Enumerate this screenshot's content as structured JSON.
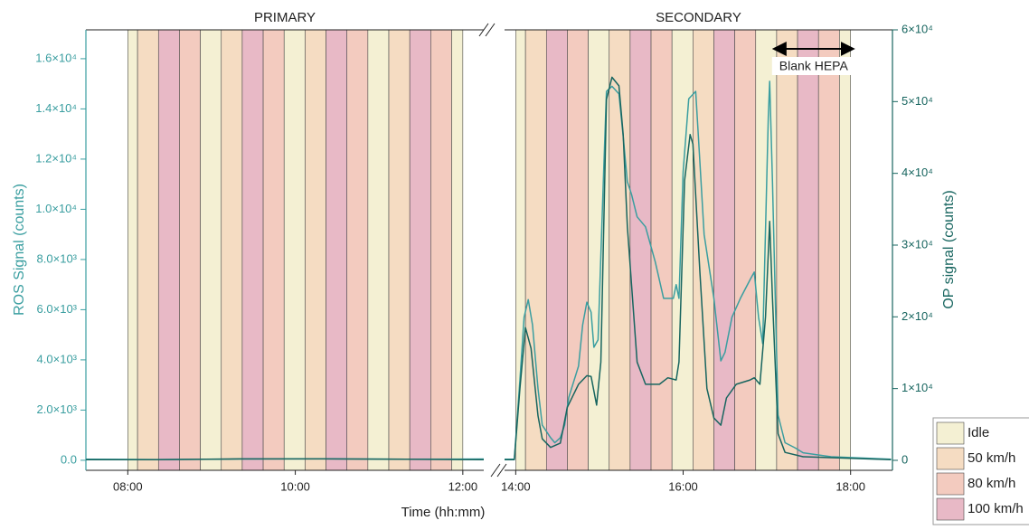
{
  "chart_data": {
    "type": "line",
    "x_label": "Time (hh:mm)",
    "y_label": "ROS Signal (counts)",
    "y2_label": "OP signal (counts)",
    "ylim": [
      -400,
      17150
    ],
    "yticks": [
      {
        "value": 0,
        "label": "0.0"
      },
      {
        "value": 2000,
        "label": "2.0×10³"
      },
      {
        "value": 4000,
        "label": "4.0×10³"
      },
      {
        "value": 6000,
        "label": "6.0×10³"
      },
      {
        "value": 8000,
        "label": "8.0×10³"
      },
      {
        "value": 10000,
        "label": "1.0×10⁴"
      },
      {
        "value": 12000,
        "label": "1.2×10⁴"
      },
      {
        "value": 14000,
        "label": "1.4×10⁴"
      },
      {
        "value": 16000,
        "label": "1.6×10⁴"
      }
    ],
    "y2lim": [
      -1390,
      60000
    ],
    "y2ticks": [
      0,
      {
        "value": 10000,
        "label": "1×10⁴"
      },
      {
        "value": 20000,
        "label": "2×10⁴"
      },
      {
        "value": 30000,
        "label": "3×10⁴"
      },
      {
        "value": 40000,
        "label": "4×10⁴"
      },
      {
        "value": 50000,
        "label": "5×10⁴"
      },
      {
        "value": 60000,
        "label": "6×10⁴"
      }
    ],
    "phases": [
      {
        "name": "Idle",
        "color": "#f4f0d3"
      },
      {
        "name": "50 km/h",
        "color": "#f5dcc2"
      },
      {
        "name": "80 km/h",
        "color": "#f3cbbf"
      },
      {
        "name": "100 km/h",
        "color": "#e8b9c6"
      }
    ],
    "panels": [
      {
        "title": "PRIMARY",
        "xlim": [
          450,
          735
        ],
        "xticks": [
          {
            "value": 480,
            "label": "08:00"
          },
          {
            "value": 600,
            "label": "10:00"
          },
          {
            "value": 720,
            "label": "12:00"
          }
        ],
        "bands": [
          {
            "start": 480,
            "end": 487,
            "phase": "Idle"
          },
          {
            "start": 487,
            "end": 502,
            "phase": "50 km/h"
          },
          {
            "start": 502,
            "end": 517,
            "phase": "100 km/h"
          },
          {
            "start": 517,
            "end": 532,
            "phase": "80 km/h"
          },
          {
            "start": 532,
            "end": 547,
            "phase": "Idle"
          },
          {
            "start": 547,
            "end": 562,
            "phase": "50 km/h"
          },
          {
            "start": 562,
            "end": 577,
            "phase": "100 km/h"
          },
          {
            "start": 577,
            "end": 592,
            "phase": "80 km/h"
          },
          {
            "start": 592,
            "end": 607,
            "phase": "Idle"
          },
          {
            "start": 607,
            "end": 622,
            "phase": "50 km/h"
          },
          {
            "start": 622,
            "end": 637,
            "phase": "100 km/h"
          },
          {
            "start": 637,
            "end": 652,
            "phase": "80 km/h"
          },
          {
            "start": 652,
            "end": 667,
            "phase": "Idle"
          },
          {
            "start": 667,
            "end": 682,
            "phase": "50 km/h"
          },
          {
            "start": 682,
            "end": 697,
            "phase": "100 km/h"
          },
          {
            "start": 697,
            "end": 712,
            "phase": "80 km/h"
          },
          {
            "start": 712,
            "end": 720,
            "phase": "Idle"
          }
        ]
      },
      {
        "title": "SECONDARY",
        "xlim": [
          832,
          1110
        ],
        "xticks": [
          {
            "value": 840,
            "label": "14:00"
          },
          {
            "value": 960,
            "label": "16:00"
          },
          {
            "value": 1080,
            "label": "18:00"
          }
        ],
        "bands": [
          {
            "start": 840,
            "end": 847,
            "phase": "Idle"
          },
          {
            "start": 847,
            "end": 862,
            "phase": "50 km/h"
          },
          {
            "start": 862,
            "end": 877,
            "phase": "100 km/h"
          },
          {
            "start": 877,
            "end": 892,
            "phase": "80 km/h"
          },
          {
            "start": 892,
            "end": 907,
            "phase": "Idle"
          },
          {
            "start": 907,
            "end": 922,
            "phase": "50 km/h"
          },
          {
            "start": 922,
            "end": 937,
            "phase": "100 km/h"
          },
          {
            "start": 937,
            "end": 952,
            "phase": "80 km/h"
          },
          {
            "start": 952,
            "end": 967,
            "phase": "Idle"
          },
          {
            "start": 967,
            "end": 982,
            "phase": "50 km/h"
          },
          {
            "start": 982,
            "end": 997,
            "phase": "100 km/h"
          },
          {
            "start": 997,
            "end": 1012,
            "phase": "80 km/h"
          },
          {
            "start": 1012,
            "end": 1027,
            "phase": "Idle"
          },
          {
            "start": 1027,
            "end": 1042,
            "phase": "50 km/h"
          },
          {
            "start": 1042,
            "end": 1057,
            "phase": "100 km/h"
          },
          {
            "start": 1057,
            "end": 1072,
            "phase": "80 km/h"
          },
          {
            "start": 1072,
            "end": 1080,
            "phase": "Idle"
          }
        ]
      }
    ],
    "annotation": {
      "text": "Blank HEPA",
      "span": [
        1025,
        1082
      ]
    },
    "series": [
      {
        "color": "#3a9ea0",
        "x": [
          450,
          500,
          560,
          620,
          680,
          735,
          832,
          839,
          843,
          846,
          849,
          852,
          856,
          859,
          865,
          868,
          872,
          875,
          878,
          885,
          888,
          891,
          894,
          896,
          899,
          903,
          905,
          909,
          914,
          917,
          920,
          923,
          927,
          933,
          940,
          946,
          953,
          955,
          957,
          960,
          964,
          969,
          972,
          975,
          982,
          987,
          990,
          995,
          1001,
          1008,
          1011,
          1014,
          1017,
          1021,
          1022,
          1024,
          1028,
          1033,
          1040,
          1046,
          1066,
          1109
        ],
        "values": [
          40,
          30,
          50,
          60,
          40,
          50,
          40,
          40,
          3200,
          5700,
          6400,
          5400,
          2850,
          1400,
          900,
          700,
          900,
          1400,
          2500,
          3750,
          5400,
          6300,
          5900,
          4500,
          4800,
          11500,
          14700,
          14900,
          14600,
          12900,
          11100,
          10600,
          9700,
          9300,
          7900,
          6450,
          6450,
          7000,
          6450,
          11500,
          14400,
          14700,
          11900,
          9000,
          6450,
          3960,
          4300,
          5700,
          6450,
          7200,
          7500,
          5700,
          4650,
          13700,
          15100,
          11100,
          1800,
          700,
          500,
          300,
          140,
          40
        ]
      },
      {
        "color": "#17655f",
        "axis": "y2",
        "x": [
          450,
          500,
          560,
          620,
          680,
          735,
          832,
          839,
          843,
          847,
          851,
          856,
          859,
          865,
          872,
          877,
          885,
          891,
          894,
          898,
          901,
          905,
          909,
          914,
          917,
          920,
          927,
          933,
          943,
          949,
          955,
          957,
          961,
          965,
          967,
          972,
          977,
          982,
          987,
          991,
          998,
          1008,
          1011,
          1015,
          1019,
          1022,
          1024,
          1028,
          1033,
          1046,
          1109
        ],
        "values": [
          100,
          100,
          200,
          200,
          150,
          100,
          100,
          100,
          10000,
          18500,
          15600,
          6200,
          3000,
          1800,
          2400,
          7400,
          10600,
          11800,
          11700,
          7700,
          13700,
          50300,
          53400,
          52200,
          45400,
          32600,
          13700,
          10600,
          10600,
          11500,
          11200,
          13700,
          39000,
          45400,
          44100,
          26300,
          10000,
          5900,
          4900,
          8700,
          10600,
          11200,
          11500,
          10600,
          20000,
          33300,
          22600,
          3700,
          1100,
          500,
          100
        ]
      }
    ]
  }
}
